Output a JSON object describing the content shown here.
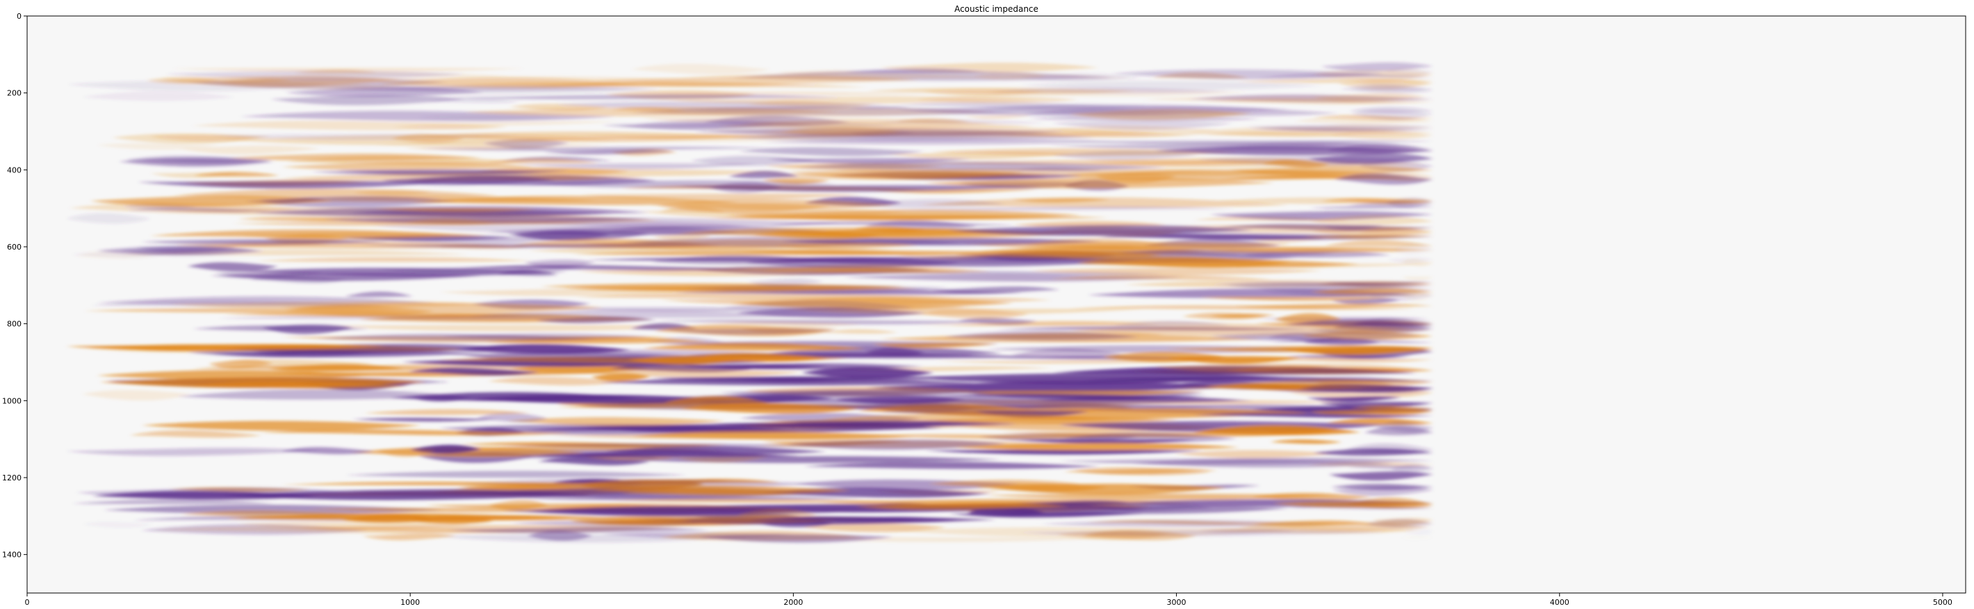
{
  "chart_data": {
    "type": "heatmap",
    "title": "Acoustic impedance",
    "xlabel": "",
    "ylabel": "",
    "xlim": [
      0,
      5060
    ],
    "ylim": [
      1500,
      0
    ],
    "x_ticks": [
      0,
      1000,
      2000,
      3000,
      4000,
      5000
    ],
    "y_ticks": [
      0,
      200,
      400,
      600,
      800,
      1000,
      1200,
      1400
    ],
    "x_tick_labels": [
      "0",
      "1000",
      "2000",
      "3000",
      "4000",
      "5000"
    ],
    "y_tick_labels": [
      "0",
      "200",
      "400",
      "600",
      "800",
      "1000",
      "1200",
      "1400"
    ],
    "grid": false,
    "colormap": "PuOr (orange = positive, white = zero, purple = negative)",
    "colors": {
      "positive": "#e08214",
      "zero": "#f7f7f7",
      "negative": "#542788",
      "background": "#f7f7f7"
    },
    "data_extent": {
      "x": [
        150,
        3650
      ],
      "y": [
        130,
        1360
      ]
    },
    "note_layers": "horizontal interleaved orange/purple reflector bands; strongest amplitudes between y=850 and y=1320 and x=350..3500"
  }
}
